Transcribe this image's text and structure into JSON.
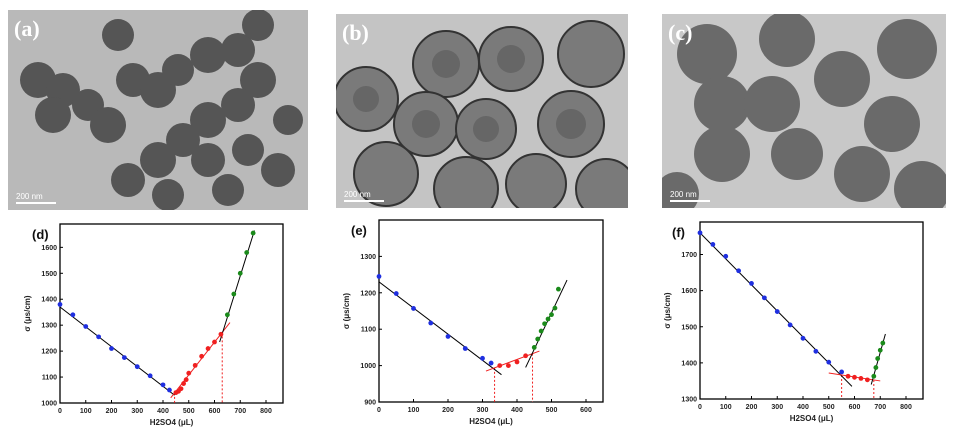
{
  "tem_images": [
    {
      "label": "(a)",
      "scale_bar": "200 nm"
    },
    {
      "label": "(b)",
      "scale_bar": "200 nm"
    },
    {
      "label": "(c)",
      "scale_bar": "200 nm"
    }
  ],
  "chart_data": [
    {
      "type": "scatter",
      "label": "(d)",
      "xlabel": "H2SO4 (μL)",
      "ylabel": "σ (μs/cm)",
      "xlim": [
        0,
        800
      ],
      "ylim": [
        1000,
        1690
      ],
      "xticks": [
        0,
        100,
        200,
        300,
        400,
        500,
        600,
        700,
        800
      ],
      "yticks": [
        1000,
        1100,
        1200,
        1300,
        1400,
        1500,
        1600
      ],
      "series": [
        {
          "name": "blue",
          "color": "#1f2fe0",
          "points": [
            [
              0,
              1380
            ],
            [
              50,
              1340
            ],
            [
              100,
              1295
            ],
            [
              150,
              1255
            ],
            [
              200,
              1210
            ],
            [
              250,
              1175
            ],
            [
              300,
              1140
            ],
            [
              350,
              1105
            ],
            [
              400,
              1070
            ],
            [
              425,
              1050
            ]
          ]
        },
        {
          "name": "red",
          "color": "#f02020",
          "points": [
            [
              450,
              1040
            ],
            [
              460,
              1045
            ],
            [
              470,
              1055
            ],
            [
              480,
              1075
            ],
            [
              490,
              1090
            ],
            [
              500,
              1115
            ],
            [
              525,
              1145
            ],
            [
              550,
              1180
            ],
            [
              575,
              1210
            ],
            [
              600,
              1235
            ],
            [
              625,
              1265
            ]
          ]
        },
        {
          "name": "green",
          "color": "#1a8a1a",
          "points": [
            [
              650,
              1340
            ],
            [
              675,
              1420
            ],
            [
              700,
              1500
            ],
            [
              725,
              1580
            ],
            [
              750,
              1655
            ]
          ]
        }
      ],
      "fit_lines": [
        {
          "color": "#000000",
          "from": [
            0,
            1370
          ],
          "to": [
            445,
            1030
          ]
        },
        {
          "color": "#f02020",
          "from": [
            430,
            1020
          ],
          "to": [
            660,
            1310
          ]
        },
        {
          "color": "#000000",
          "from": [
            620,
            1235
          ],
          "to": [
            755,
            1665
          ]
        }
      ],
      "markers_x": [
        445,
        630
      ]
    },
    {
      "type": "scatter",
      "label": "(e)",
      "xlabel": "H2SO4 (μL)",
      "ylabel": "σ (μs/cm)",
      "xlim": [
        0,
        600
      ],
      "ylim": [
        900,
        1400
      ],
      "xticks": [
        0,
        100,
        200,
        300,
        400,
        500,
        600
      ],
      "yticks": [
        900,
        1000,
        1100,
        1200,
        1300
      ],
      "series": [
        {
          "name": "blue",
          "color": "#1f2fe0",
          "points": [
            [
              0,
              1245
            ],
            [
              50,
              1198
            ],
            [
              100,
              1157
            ],
            [
              150,
              1117
            ],
            [
              200,
              1080
            ],
            [
              250,
              1047
            ],
            [
              300,
              1020
            ],
            [
              325,
              1007
            ]
          ]
        },
        {
          "name": "red",
          "color": "#f02020",
          "points": [
            [
              350,
              1000
            ],
            [
              375,
              1000
            ],
            [
              400,
              1010
            ],
            [
              425,
              1027
            ]
          ]
        },
        {
          "name": "green",
          "color": "#1a8a1a",
          "points": [
            [
              450,
              1050
            ],
            [
              460,
              1073
            ],
            [
              470,
              1095
            ],
            [
              480,
              1115
            ],
            [
              490,
              1128
            ],
            [
              500,
              1140
            ],
            [
              510,
              1158
            ],
            [
              520,
              1210
            ]
          ]
        }
      ],
      "fit_lines": [
        {
          "color": "#000000",
          "from": [
            0,
            1230
          ],
          "to": [
            355,
            975
          ]
        },
        {
          "color": "#f02020",
          "from": [
            310,
            985
          ],
          "to": [
            465,
            1040
          ]
        },
        {
          "color": "#000000",
          "from": [
            425,
            995
          ],
          "to": [
            545,
            1235
          ]
        }
      ],
      "markers_x": [
        335,
        445
      ]
    },
    {
      "type": "scatter",
      "label": "(f)",
      "xlabel": "H2SO4 (μL)",
      "ylabel": "σ (μs/cm)",
      "xlim": [
        0,
        800
      ],
      "ylim": [
        1300,
        1790
      ],
      "xticks": [
        0,
        100,
        200,
        300,
        400,
        500,
        600,
        700,
        800
      ],
      "yticks": [
        1300,
        1400,
        1500,
        1600,
        1700
      ],
      "series": [
        {
          "name": "blue",
          "color": "#1f2fe0",
          "points": [
            [
              0,
              1760
            ],
            [
              50,
              1728
            ],
            [
              100,
              1695
            ],
            [
              150,
              1655
            ],
            [
              200,
              1620
            ],
            [
              250,
              1580
            ],
            [
              300,
              1542
            ],
            [
              350,
              1505
            ],
            [
              400,
              1468
            ],
            [
              450,
              1432
            ],
            [
              500,
              1402
            ],
            [
              550,
              1375
            ]
          ]
        },
        {
          "name": "red",
          "color": "#f02020",
          "points": [
            [
              575,
              1363
            ],
            [
              600,
              1360
            ],
            [
              625,
              1357
            ],
            [
              650,
              1353
            ]
          ]
        },
        {
          "name": "green",
          "color": "#1a8a1a",
          "points": [
            [
              675,
              1363
            ],
            [
              683,
              1387
            ],
            [
              690,
              1412
            ],
            [
              700,
              1435
            ],
            [
              710,
              1455
            ]
          ]
        }
      ],
      "fit_lines": [
        {
          "color": "#000000",
          "from": [
            0,
            1760
          ],
          "to": [
            590,
            1335
          ]
        },
        {
          "color": "#f02020",
          "from": [
            500,
            1372
          ],
          "to": [
            700,
            1350
          ]
        },
        {
          "color": "#000000",
          "from": [
            665,
            1340
          ],
          "to": [
            720,
            1480
          ]
        }
      ],
      "markers_x": [
        550,
        675
      ]
    }
  ]
}
